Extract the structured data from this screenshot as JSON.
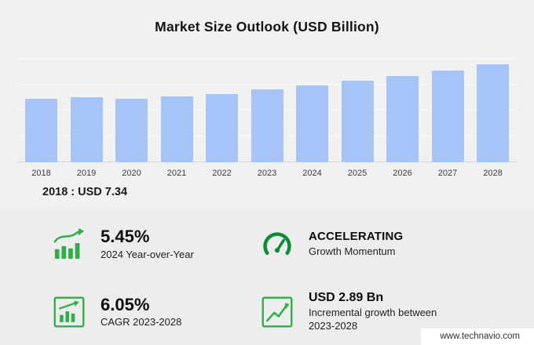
{
  "title": "Market Size Outlook (USD Billion)",
  "chart_data": {
    "type": "bar",
    "title": "Market Size Outlook (USD Billion)",
    "categories": [
      "2018",
      "2019",
      "2020",
      "2021",
      "2022",
      "2023",
      "2024",
      "2025",
      "2026",
      "2027",
      "2028"
    ],
    "values": [
      7.34,
      7.55,
      7.35,
      7.65,
      7.95,
      8.46,
      8.92,
      9.45,
      10.02,
      10.65,
      11.35
    ],
    "xlabel": "",
    "ylabel": "USD Billion",
    "ylim": [
      0,
      12
    ],
    "grid": true,
    "legend": "none",
    "bar_color": "#a7c4f8"
  },
  "annotation": {
    "base_year_value": "2018 : USD  7.34"
  },
  "stats": [
    {
      "value": "5.45%",
      "label": "2024 Year-over-Year",
      "icon": "bar-growth-icon"
    },
    {
      "value": "ACCELERATING",
      "label": "Growth Momentum",
      "icon": "gauge-icon"
    },
    {
      "value": "6.05%",
      "label": "CAGR 2023-2028",
      "icon": "chart-box-icon"
    },
    {
      "value": "USD 2.89 Bn",
      "label": "Incremental growth between 2023-2028",
      "icon": "line-growth-icon"
    }
  ],
  "footer": {
    "website": "www.technavio.com"
  },
  "colors": {
    "accent_green": "#2fae4a",
    "bar_blue": "#a7c4f8",
    "background": "#f1f1f1"
  }
}
